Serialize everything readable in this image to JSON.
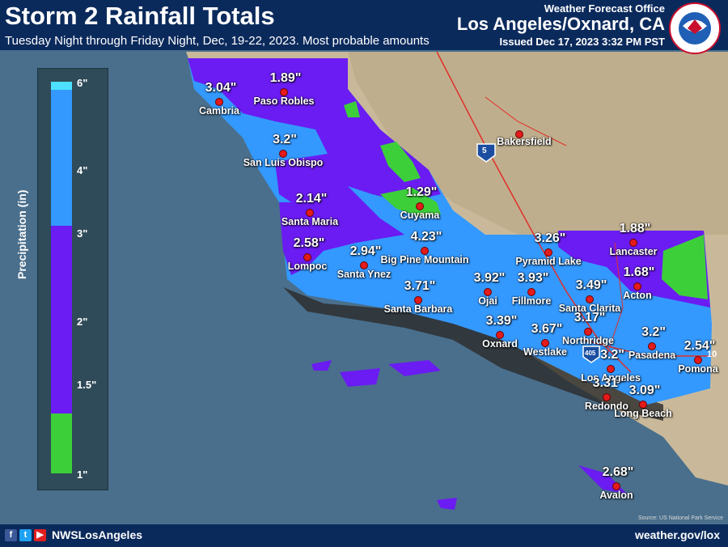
{
  "header": {
    "title": "Storm 2 Rainfall Totals",
    "subtitle": "Tuesday Night through Friday Night, Dec, 19-22, 2023. Most probable amounts",
    "office": "Weather Forecast Office",
    "office_city": "Los Angeles/Oxnard, CA",
    "issued": "Issued Dec 17, 2023 3:32 PM PST",
    "logo_text": "NATIONAL WEATHER SERVICE"
  },
  "legend": {
    "title": "Precipitation (in)",
    "ticks": [
      "6\"",
      "4\"",
      "3\"",
      "2\"",
      "1.5\"",
      "1\""
    ],
    "colors": {
      "6": "#4de1ff",
      "3to6": "#3399ff",
      "1.5to3": "#6a1cf2",
      "1to1.5": "#3dcf3a"
    }
  },
  "map": {
    "highway_shields": [
      "5",
      "405",
      "10"
    ],
    "cities": [
      {
        "name": "Paso Robles",
        "value": "1.89\""
      },
      {
        "name": "Cambria",
        "value": "3.04\""
      },
      {
        "name": "San Luis Obispo",
        "value": "3.2\""
      },
      {
        "name": "Bakersfield",
        "value": ""
      },
      {
        "name": "Santa Maria",
        "value": "2.14\""
      },
      {
        "name": "Cuyama",
        "value": "1.29\""
      },
      {
        "name": "Lompoc",
        "value": "2.58\""
      },
      {
        "name": "Santa Ynez",
        "value": "2.94\""
      },
      {
        "name": "Big Pine Mountain",
        "value": "4.23\""
      },
      {
        "name": "Pyramid Lake",
        "value": "3.26\""
      },
      {
        "name": "Lancaster",
        "value": "1.88\""
      },
      {
        "name": "Santa Barbara",
        "value": "3.71\""
      },
      {
        "name": "Ojai",
        "value": "3.92\""
      },
      {
        "name": "Fillmore",
        "value": "3.93\""
      },
      {
        "name": "Santa Clarita",
        "value": "3.49\""
      },
      {
        "name": "Acton",
        "value": "1.68\""
      },
      {
        "name": "Oxnard",
        "value": "3.39\""
      },
      {
        "name": "Westlake",
        "value": "3.67\""
      },
      {
        "name": "Northridge",
        "value": "3.17\""
      },
      {
        "name": "Pasadena",
        "value": "3.2\""
      },
      {
        "name": "Pomona",
        "value": "2.54\""
      },
      {
        "name": "Los Angeles",
        "value": "3.2\""
      },
      {
        "name": "Redondo",
        "value": "3.31\""
      },
      {
        "name": "Long Beach",
        "value": "3.09\""
      },
      {
        "name": "Avalon",
        "value": "2.68\""
      }
    ],
    "credit": "Source: US National Park Service"
  },
  "footer": {
    "handle": "NWSLosAngeles",
    "website": "weather.gov/lox"
  }
}
